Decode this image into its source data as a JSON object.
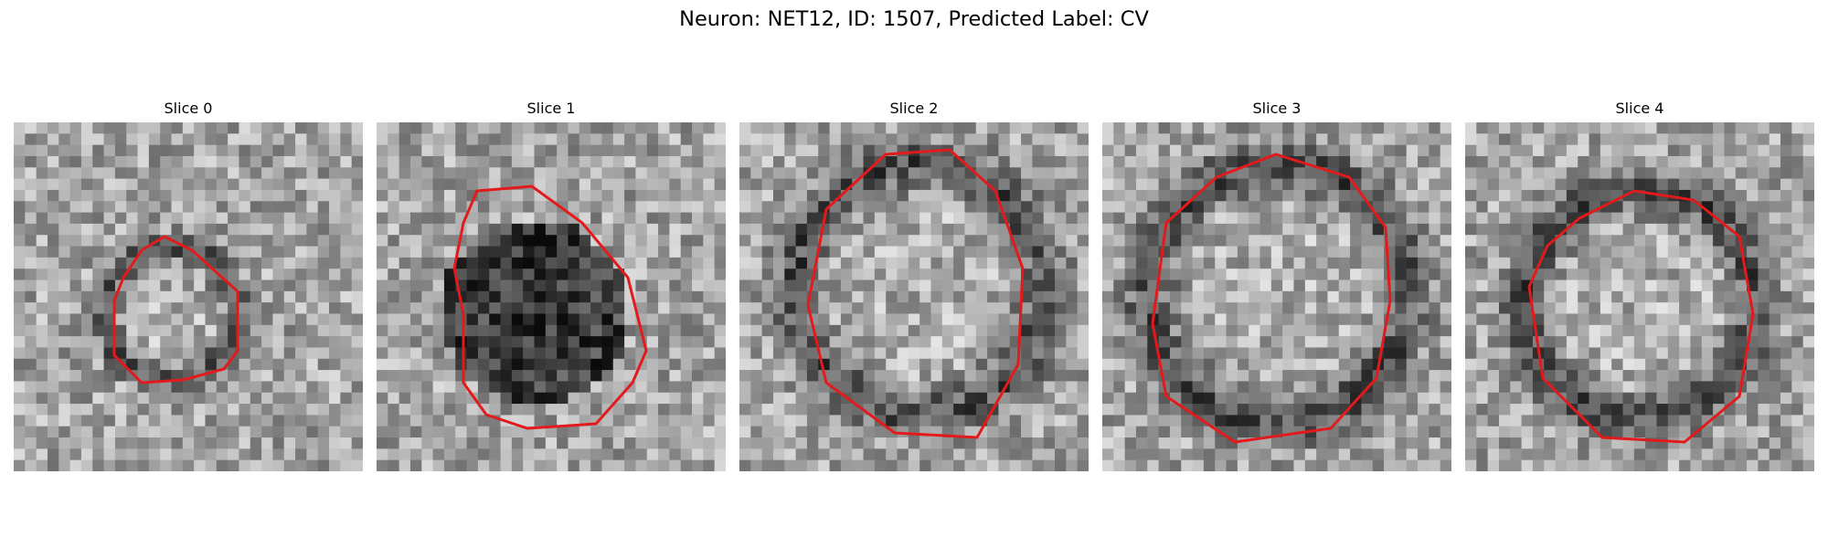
{
  "figure": {
    "title": "Neuron: NET12, ID: 1507, Predicted Label: CV",
    "colors": {
      "background": "#ffffff",
      "contour": "#e31a1c",
      "colormap": "grayscale"
    }
  },
  "slices": [
    {
      "title": "Slice 0"
    },
    {
      "title": "Slice 1"
    },
    {
      "title": "Slice 2"
    },
    {
      "title": "Slice 3"
    },
    {
      "title": "Slice 4"
    }
  ]
}
